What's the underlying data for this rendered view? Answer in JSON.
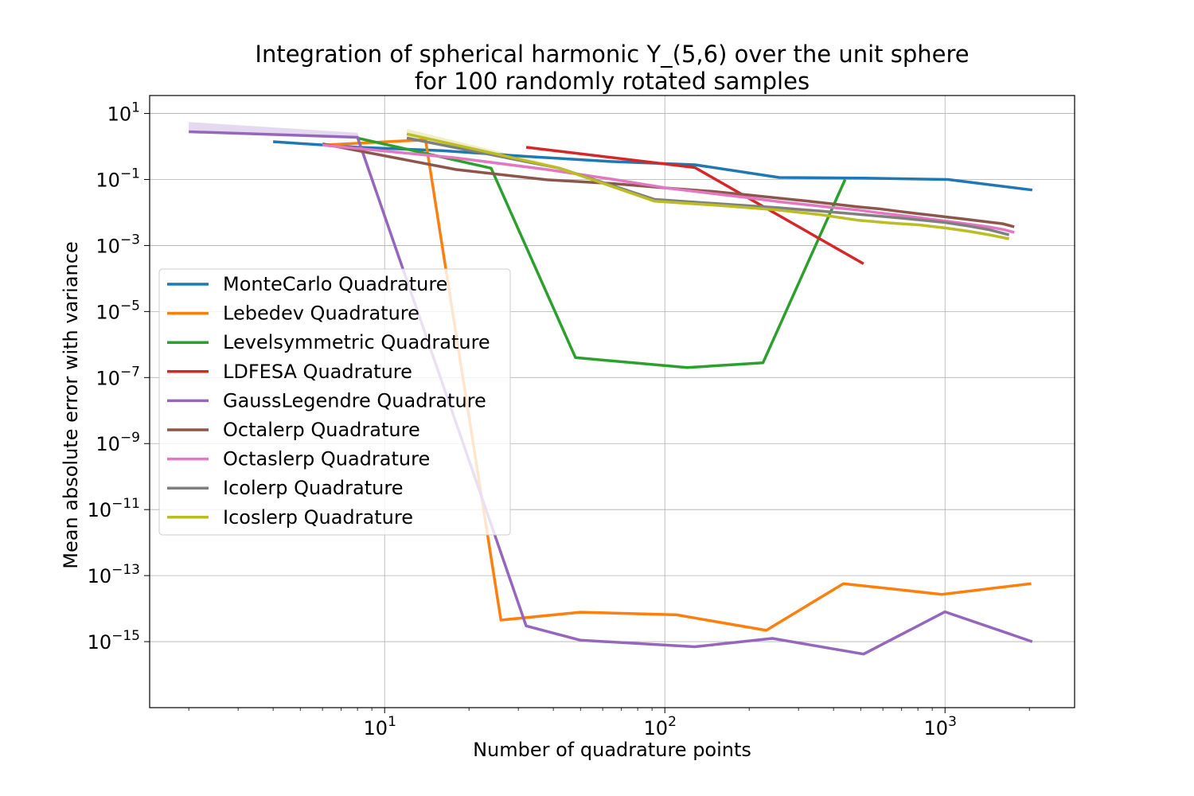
{
  "chart_data": {
    "type": "line",
    "title": "Integration of spherical harmonic Y_(5,6) over the unit sphere",
    "subtitle": "for 100 randomly rotated samples",
    "xlabel": "Number of quadrature points",
    "ylabel": "Mean absolute error with variance",
    "xscale": "log",
    "yscale": "log",
    "xlim": [
      1.45,
      2900
    ],
    "ylim": [
      1e-17,
      35.0
    ],
    "x_ticks": [
      {
        "value": 10,
        "base": "10",
        "exp": "1"
      },
      {
        "value": 100,
        "base": "10",
        "exp": "2"
      },
      {
        "value": 1000,
        "base": "10",
        "exp": "3"
      }
    ],
    "y_ticks": [
      {
        "value": 10.0,
        "base": "10",
        "exp": "1"
      },
      {
        "value": 0.1,
        "base": "10",
        "exp": "−1"
      },
      {
        "value": 0.001,
        "base": "10",
        "exp": "−3"
      },
      {
        "value": 1e-05,
        "base": "10",
        "exp": "−5"
      },
      {
        "value": 1e-07,
        "base": "10",
        "exp": "−7"
      },
      {
        "value": 1e-09,
        "base": "10",
        "exp": "−9"
      },
      {
        "value": 1e-11,
        "base": "10",
        "exp": "−11"
      },
      {
        "value": 1e-13,
        "base": "10",
        "exp": "−13"
      },
      {
        "value": 1e-15,
        "base": "10",
        "exp": "−15"
      }
    ],
    "grid": true,
    "legend_position": "center-left",
    "series": [
      {
        "name": "MonteCarlo Quadrature",
        "color": "#1f77b4",
        "x": [
          4,
          8,
          16,
          32,
          64,
          128,
          256,
          512,
          1024,
          2048
        ],
        "y": [
          1.4,
          0.95,
          0.75,
          0.5,
          0.35,
          0.28,
          0.115,
          0.11,
          0.1,
          0.048
        ]
      },
      {
        "name": "Lebedev Quadrature",
        "color": "#ff7f0e",
        "x": [
          6,
          14,
          26,
          50,
          110,
          230,
          434,
          974,
          2030
        ],
        "y": [
          1.1,
          1.6,
          4.5e-15,
          7.8e-15,
          6.5e-15,
          2.2e-15,
          5.7e-14,
          2.7e-14,
          5.7e-14
        ],
        "var_upper": [
          1.1,
          1.8,
          4.5e-15,
          7.8e-15,
          6.5e-15,
          2.2e-15,
          5.7e-14,
          2.7e-14,
          5.7e-14
        ],
        "var_lower": [
          1.1,
          1.4,
          4.5e-15,
          7.8e-15,
          6.5e-15,
          2.2e-15,
          5.7e-14,
          2.7e-14,
          5.7e-14
        ]
      },
      {
        "name": "Levelsymmetric Quadrature",
        "color": "#2ca02c",
        "x": [
          8,
          24,
          48,
          120,
          224,
          440
        ],
        "y": [
          1.8,
          0.22,
          4e-07,
          2e-07,
          2.8e-07,
          0.1
        ]
      },
      {
        "name": "LDFESA Quadrature",
        "color": "#d62728",
        "x": [
          32,
          128,
          512
        ],
        "y": [
          0.95,
          0.23,
          0.00028
        ]
      },
      {
        "name": "GaussLegendre Quadrature",
        "color": "#9467bd",
        "x": [
          2,
          8,
          32,
          50,
          128,
          242,
          512,
          1000,
          2048
        ],
        "y": [
          2.8,
          1.9,
          3e-15,
          1.1e-15,
          7e-16,
          1.25e-15,
          4.2e-16,
          8e-15,
          1e-15
        ],
        "var_upper": [
          5.5,
          2.6,
          3e-15,
          1.1e-15,
          7e-16,
          1.25e-15,
          4.2e-16,
          8e-15,
          1e-15
        ],
        "var_lower": [
          2.6,
          1.8,
          3e-15,
          1.1e-15,
          7e-16,
          1.25e-15,
          4.2e-16,
          8e-15,
          1e-15
        ]
      },
      {
        "name": "Octalerp Quadrature",
        "color": "#8c564b",
        "x": [
          6,
          18,
          38,
          66,
          102,
          146,
          198,
          258,
          326,
          402,
          486,
          578,
          678,
          786,
          902,
          1026,
          1158,
          1298,
          1446,
          1602,
          1766
        ],
        "y": [
          1.2,
          0.2,
          0.098,
          0.075,
          0.055,
          0.044,
          0.034,
          0.027,
          0.022,
          0.018,
          0.015,
          0.013,
          0.011,
          0.0094,
          0.0082,
          0.0072,
          0.0064,
          0.0057,
          0.0051,
          0.0046,
          0.0037
        ]
      },
      {
        "name": "Octaslerp Quadrature",
        "color": "#e377c2",
        "x": [
          6,
          18,
          38,
          66,
          102,
          146,
          198,
          258,
          326,
          402,
          486,
          578,
          678,
          786,
          902,
          1026,
          1158,
          1298,
          1446,
          1602,
          1766
        ],
        "y": [
          1.1,
          0.45,
          0.2,
          0.1,
          0.055,
          0.038,
          0.028,
          0.021,
          0.017,
          0.014,
          0.012,
          0.0098,
          0.0084,
          0.0072,
          0.0062,
          0.0054,
          0.0047,
          0.0041,
          0.0036,
          0.0031,
          0.0025
        ]
      },
      {
        "name": "Icolerp Quadrature",
        "color": "#7f7f7f",
        "x": [
          12,
          42,
          92,
          162,
          252,
          362,
          492,
          642,
          812,
          1002,
          1212,
          1442,
          1692
        ],
        "y": [
          1.8,
          0.22,
          0.025,
          0.018,
          0.014,
          0.011,
          0.0088,
          0.0072,
          0.006,
          0.005,
          0.0039,
          0.003,
          0.0021
        ]
      },
      {
        "name": "Icoslerp Quadrature",
        "color": "#bcbd22",
        "x": [
          12,
          42,
          92,
          162,
          252,
          362,
          492,
          642,
          812,
          1002,
          1212,
          1442,
          1692
        ],
        "y": [
          2.4,
          0.22,
          0.022,
          0.016,
          0.012,
          0.0085,
          0.0058,
          0.0048,
          0.0042,
          0.0034,
          0.0027,
          0.0021,
          0.0016
        ],
        "var_upper": [
          3.4,
          0.25,
          0.022,
          0.016,
          0.012,
          0.0085,
          0.0058,
          0.0048,
          0.0042,
          0.0034,
          0.0027,
          0.0021,
          0.0016
        ],
        "var_lower": [
          1.9,
          0.2,
          0.022,
          0.016,
          0.012,
          0.0085,
          0.0058,
          0.0048,
          0.0042,
          0.0034,
          0.0027,
          0.0021,
          0.0016
        ]
      }
    ]
  }
}
